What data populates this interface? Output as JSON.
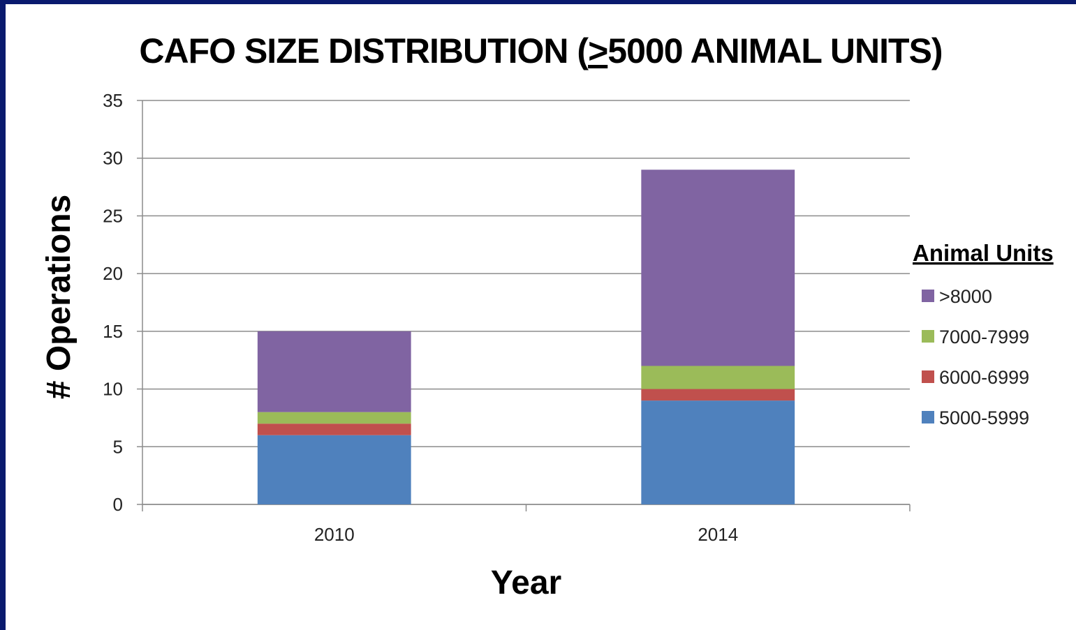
{
  "chart_data": {
    "type": "bar",
    "stacked": true,
    "title_prefix": "CAFO SIZE DISTRIBUTION (",
    "title_symbol": ">",
    "title_suffix": "5000 ANIMAL UNITS)",
    "xlabel": "Year",
    "ylabel": "# Operations",
    "categories": [
      "2010",
      "2014"
    ],
    "ylim": [
      0,
      35
    ],
    "yticks": [
      0,
      5,
      10,
      15,
      20,
      25,
      30,
      35
    ],
    "grid": true,
    "legend_title": "Animal Units",
    "legend_position": "right",
    "series": [
      {
        "name": "5000-5999",
        "values": [
          6,
          9
        ],
        "color": "#4f81bd"
      },
      {
        "name": "6000-6999",
        "values": [
          1,
          1
        ],
        "color": "#c0504d"
      },
      {
        "name": "7000-7999",
        "values": [
          1,
          2
        ],
        "color": "#9bbb59"
      },
      {
        "name": ">8000",
        "values": [
          7,
          17
        ],
        "color": "#8064a2"
      }
    ]
  }
}
